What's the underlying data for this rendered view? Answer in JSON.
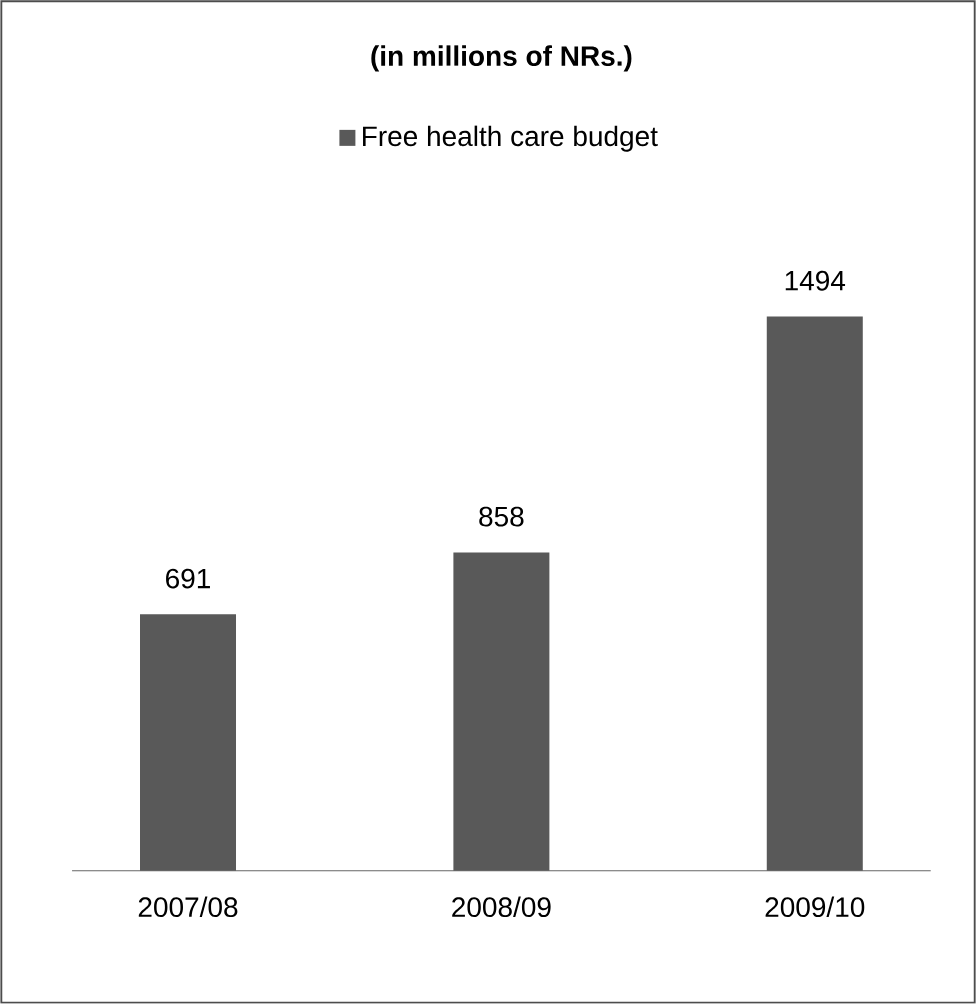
{
  "chart_data": {
    "type": "bar",
    "title": "(in millions of NRs.)",
    "categories": [
      "2007/08",
      "2008/09",
      "2009/10"
    ],
    "series": [
      {
        "name": "Free health care budget",
        "color": "#595959",
        "values": [
          691,
          858,
          1494
        ]
      }
    ],
    "data_labels": true,
    "legend": "top"
  }
}
